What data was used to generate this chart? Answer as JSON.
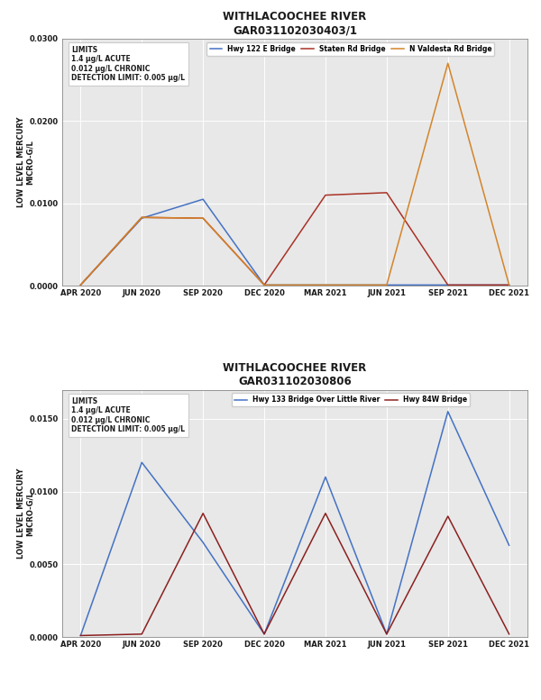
{
  "chart1": {
    "title": "WITHLACOOCHEE RIVER",
    "subtitle": "GAR031102030403/1",
    "legend": [
      "Hwy 122 E Bridge",
      "Staten Rd Bridge",
      "N Valdesta Rd Bridge"
    ],
    "colors": [
      "#4472C4",
      "#A93226",
      "#D4842A"
    ],
    "x_labels": [
      "APR 2020",
      "JUN 2020",
      "SEP 2020",
      "DEC 2020",
      "MAR 2021",
      "JUN 2021",
      "SEP 2021",
      "DEC 2021"
    ],
    "series": {
      "Hwy 122 E Bridge": [
        0.0001,
        0.0082,
        0.0105,
        0.0001,
        0.0001,
        0.0001,
        0.0001,
        0.0001
      ],
      "Staten Rd Bridge": [
        0.0001,
        0.0083,
        0.0082,
        0.0001,
        0.011,
        0.0113,
        0.0001,
        0.0001
      ],
      "N Valdesta Rd Bridge": [
        0.0001,
        0.0083,
        0.0082,
        0.0001,
        0.0001,
        0.0001,
        0.027,
        0.0001
      ]
    },
    "ylim": [
      0.0,
      0.03
    ],
    "yticks": [
      0.0,
      0.01,
      0.02,
      0.03
    ],
    "ylabel_line1": "LOW LEVEL MERCURY",
    "ylabel_line2": "MICRO-G/L",
    "limits_text": "LIMITS\n1.4 μg/L ACUTE\n0.012 μg/L CHRONIC\nDETECTION LIMIT: 0.005 μg/L"
  },
  "chart2": {
    "title": "WITHLACOOCHEE RIVER",
    "subtitle": "GAR031102030806",
    "legend": [
      "Hwy 133 Bridge Over Little River",
      "Hwy 84W Bridge"
    ],
    "colors": [
      "#4472C4",
      "#8B2020"
    ],
    "x_labels": [
      "APR 2020",
      "JUN 2020",
      "SEP 2020",
      "DEC 2020",
      "MAR 2021",
      "JUN 2021",
      "SEP 2021",
      "DEC 2021"
    ],
    "series": {
      "Hwy 133 Bridge Over Little River": [
        0.0001,
        0.012,
        0.0065,
        0.0002,
        0.011,
        0.0002,
        0.0155,
        0.0063
      ],
      "Hwy 84W Bridge": [
        0.0001,
        0.0002,
        0.0085,
        0.0002,
        0.0085,
        0.0002,
        0.0083,
        0.0002
      ]
    },
    "ylim": [
      0.0,
      0.017
    ],
    "yticks": [
      0.0,
      0.005,
      0.01,
      0.015
    ],
    "ylabel_line1": "LOW LEVEL MERCURY",
    "ylabel_line2": "MICRO-G/L",
    "limits_text": "LIMITS\n1.4 μg/L ACUTE\n0.012 μg/L CHRONIC\nDETECTION LIMIT: 0.005 μg/L"
  },
  "page_bg": "#ffffff",
  "chart_bg": "#e8e8e8",
  "border_color": "#cccccc",
  "text_color": "#1a1a1a",
  "grid_color": "#ffffff",
  "title_fontsize": 8.5,
  "tick_fontsize": 6.0,
  "ylabel_fontsize": 6.0,
  "legend_fontsize": 5.5,
  "limits_fontsize": 5.5
}
